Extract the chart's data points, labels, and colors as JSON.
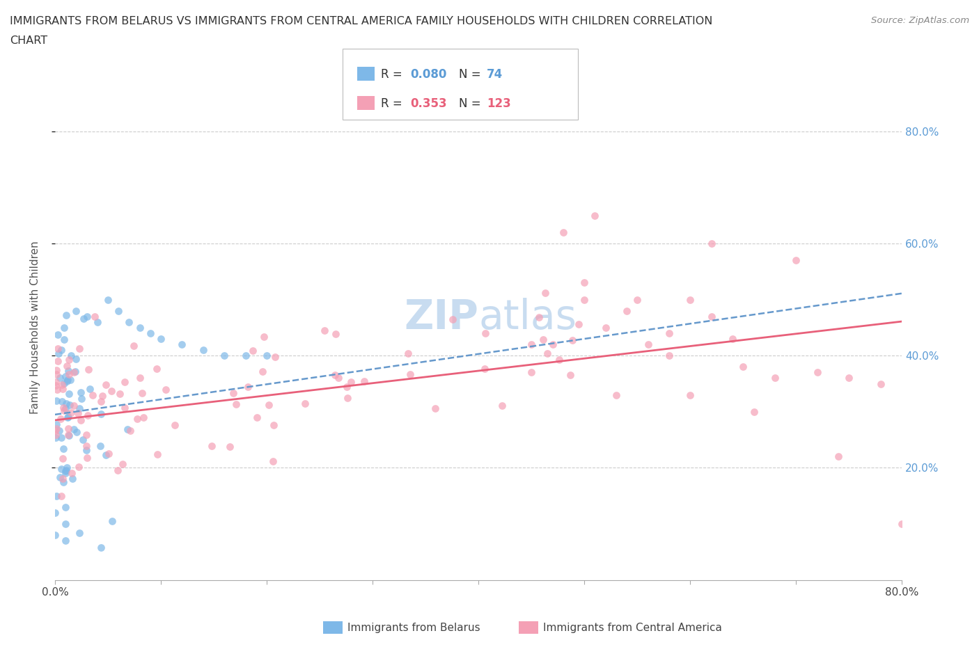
{
  "title_line1": "IMMIGRANTS FROM BELARUS VS IMMIGRANTS FROM CENTRAL AMERICA FAMILY HOUSEHOLDS WITH CHILDREN CORRELATION",
  "title_line2": "CHART",
  "source": "Source: ZipAtlas.com",
  "ylabel": "Family Households with Children",
  "color_blue": "#7EB8E8",
  "color_pink": "#F4A0B5",
  "color_blue_line": "#6699CC",
  "color_pink_line": "#E8607A",
  "color_blue_text": "#5B9BD5",
  "color_pink_text": "#E8607A",
  "watermark_color": "#C8DCF0",
  "xlim": [
    0.0,
    0.8
  ],
  "ylim": [
    0.0,
    0.9
  ],
  "yticks": [
    0.2,
    0.4,
    0.6,
    0.8
  ],
  "ytick_labels": [
    "20.0%",
    "40.0%",
    "60.0%",
    "80.0%"
  ],
  "grid_color": "#CCCCCC",
  "R1": "0.080",
  "N1": "74",
  "R2": "0.353",
  "N2": "123"
}
